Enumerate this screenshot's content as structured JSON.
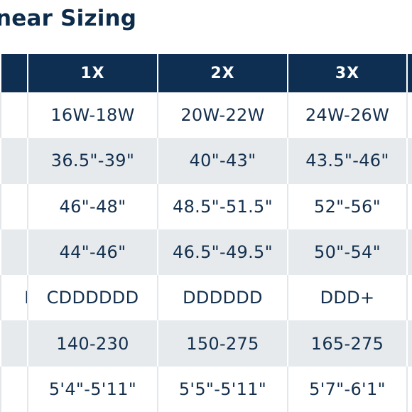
{
  "title": "near Sizing",
  "table": {
    "headers": [
      "",
      "1X",
      "2X",
      "3X",
      ""
    ],
    "rows": [
      [
        "",
        "16W-18W",
        "20W-22W",
        "24W-26W",
        ""
      ],
      [
        "",
        "36.5\"-39\"",
        "40\"-43\"",
        "43.5\"-46\"",
        ""
      ],
      [
        "\"",
        "46\"-48\"",
        "48.5\"-51.5\"",
        "52\"-56\"",
        ""
      ],
      [
        "",
        "44\"-46\"",
        "46.5\"-49.5\"",
        "50\"-54\"",
        ""
      ],
      [
        "D",
        "CDDDDDD",
        "DDDDDD",
        "DDD+",
        ""
      ],
      [
        "",
        "140-230",
        "150-275",
        "165-275",
        ""
      ],
      [
        "",
        "5'4\"-5'11\"",
        "5'5\"-5'11\"",
        "5'7\"-6'1\"",
        ""
      ]
    ]
  },
  "colors": {
    "header_bg": "#0e2f52",
    "title": "#0d2b4a",
    "shaded_row": "#e6eaed"
  }
}
